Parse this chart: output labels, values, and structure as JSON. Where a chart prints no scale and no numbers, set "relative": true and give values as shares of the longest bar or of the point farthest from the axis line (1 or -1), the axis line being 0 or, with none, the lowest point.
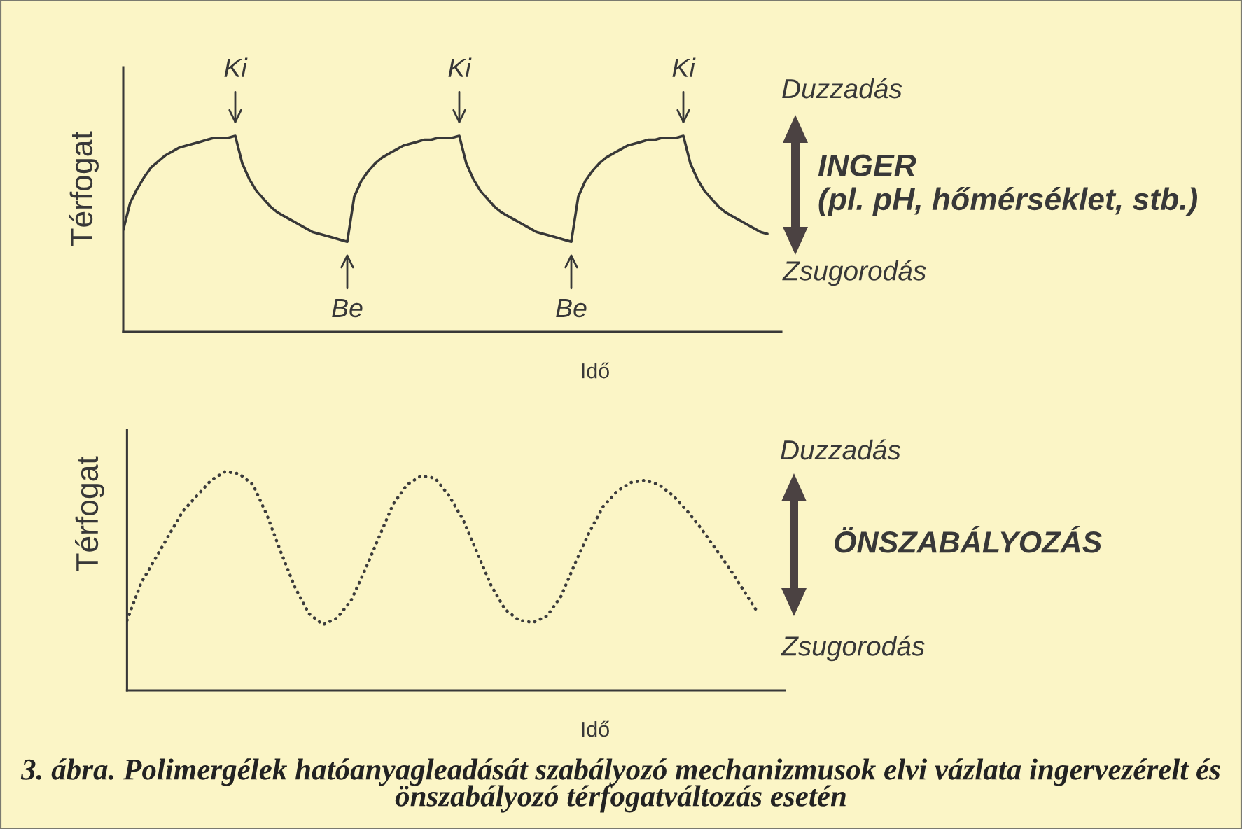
{
  "chart_data": [
    {
      "type": "line",
      "relative": true,
      "tick_labels": false,
      "xlabel": "Idő",
      "ylabel": "Térfogat",
      "line_style": "solid",
      "categories": [
        null,
        null,
        null,
        null,
        null,
        null,
        null,
        null,
        null,
        null,
        null,
        null,
        null,
        null,
        null,
        null,
        null,
        null,
        null,
        null,
        null,
        null,
        null,
        null,
        null,
        null,
        null,
        null,
        null,
        null,
        null,
        null,
        null,
        null,
        null,
        null,
        null,
        null,
        null,
        null,
        null,
        null,
        null,
        null,
        null,
        null,
        null,
        null,
        null,
        null,
        null,
        null,
        null,
        null,
        null,
        null,
        null,
        null,
        null,
        null,
        null,
        null,
        null,
        null,
        null,
        null,
        null,
        null,
        null,
        null,
        null,
        null,
        null,
        null,
        null,
        null,
        null,
        null,
        null,
        null,
        null,
        null,
        null,
        null,
        null,
        null,
        null,
        null,
        null,
        null,
        null,
        null,
        null,
        null,
        null
      ],
      "series": [
        {
          "color": "#383838",
          "values": [
            0.52,
            0.66,
            0.73,
            0.79,
            0.84,
            0.87,
            0.9,
            0.92,
            0.94,
            0.95,
            0.96,
            0.97,
            0.98,
            0.99,
            0.99,
            0.99,
            1.0,
            0.86,
            0.78,
            0.72,
            0.68,
            0.64,
            0.61,
            0.59,
            0.57,
            0.55,
            0.53,
            0.51,
            0.5,
            0.49,
            0.48,
            0.47,
            0.46,
            0.69,
            0.77,
            0.82,
            0.86,
            0.89,
            0.91,
            0.93,
            0.95,
            0.96,
            0.97,
            0.98,
            0.98,
            0.99,
            0.99,
            0.99,
            1.0,
            0.86,
            0.78,
            0.72,
            0.68,
            0.64,
            0.61,
            0.59,
            0.57,
            0.55,
            0.53,
            0.51,
            0.5,
            0.49,
            0.48,
            0.47,
            0.46,
            0.69,
            0.77,
            0.82,
            0.86,
            0.89,
            0.91,
            0.93,
            0.95,
            0.96,
            0.97,
            0.98,
            0.98,
            0.99,
            0.99,
            0.99,
            1.0,
            0.86,
            0.78,
            0.72,
            0.68,
            0.64,
            0.61,
            0.59,
            0.57,
            0.55,
            0.53,
            0.51,
            0.5,
            null,
            null
          ]
        }
      ],
      "annotations": [
        "Ki",
        "Be",
        "Ki",
        "Be",
        "Ki"
      ]
    },
    {
      "type": "other",
      "annotations": [
        "Duzzadás",
        "INGER",
        "(pl. pH, hőmérséklet, stb.)",
        "Zsugorodás"
      ]
    },
    {
      "type": "line",
      "relative": true,
      "tick_labels": false,
      "xlabel": "Idő",
      "ylabel": "Térfogat",
      "line_style": "dotted",
      "categories": [
        null,
        null,
        null,
        null,
        null,
        null,
        null,
        null,
        null,
        null,
        null,
        null,
        null,
        null,
        null,
        null,
        null,
        null,
        null,
        null,
        null,
        null,
        null,
        null,
        null,
        null,
        null,
        null,
        null,
        null,
        null,
        null,
        null,
        null,
        null,
        null,
        null,
        null,
        null,
        null,
        null,
        null,
        null,
        null,
        null,
        null,
        null,
        null
      ],
      "series": [
        {
          "color": "#3c3c3c",
          "values": [
            0.32,
            0.49,
            0.6,
            0.71,
            0.82,
            0.89,
            0.96,
            1.0,
            0.99,
            0.94,
            0.8,
            0.63,
            0.47,
            0.35,
            0.3,
            0.33,
            0.41,
            0.55,
            0.7,
            0.85,
            0.94,
            0.98,
            0.97,
            0.89,
            0.78,
            0.63,
            0.48,
            0.37,
            0.32,
            0.31,
            0.34,
            0.43,
            0.58,
            0.72,
            0.84,
            0.91,
            0.95,
            0.96,
            0.94,
            0.89,
            0.82,
            0.74,
            0.65,
            0.56,
            0.46,
            0.36,
            null,
            null
          ]
        }
      ]
    },
    {
      "type": "other",
      "annotations": [
        "Duzzadás",
        "ÖNSZABÁLYOZÁS",
        "Zsugorodás"
      ]
    },
    {
      "type": "other",
      "annotations": [
        "3. ábra. Polimergélek hatóanyagleadását szabályozó mechanizmusok elvi vázlata ingervezérelt és önszabályozó térfogatváltozás esetén"
      ]
    }
  ]
}
